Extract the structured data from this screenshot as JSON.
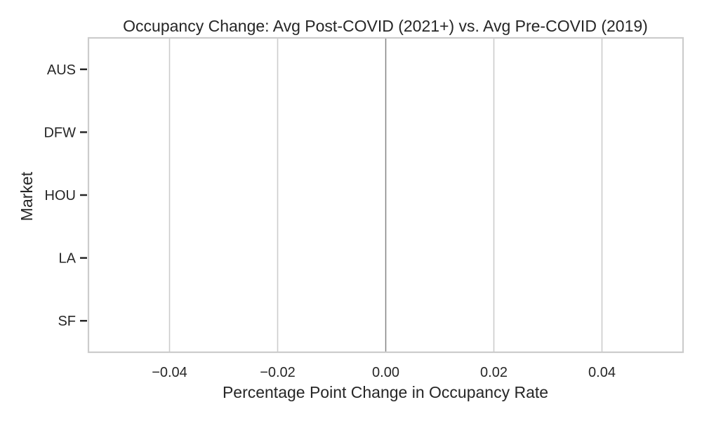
{
  "chart_data": {
    "type": "bar",
    "orientation": "horizontal",
    "title": "Occupancy Change: Avg Post-COVID (2021+) vs. Avg Pre-COVID (2019)",
    "xlabel": "Percentage Point Change in Occupancy Rate",
    "ylabel": "Market",
    "categories": [
      "AUS",
      "DFW",
      "HOU",
      "LA",
      "SF"
    ],
    "values": [
      0,
      0,
      0,
      0,
      0
    ],
    "xlim": [
      -0.055,
      0.055
    ],
    "xticks": [
      -0.04,
      -0.02,
      0.0,
      0.02,
      0.04
    ],
    "xtick_labels": [
      "−0.04",
      "−0.02",
      "0.00",
      "0.02",
      "0.04"
    ],
    "grid": "vertical",
    "zero_line": true,
    "legend": "none"
  },
  "colors": {
    "grid": "#cccccc",
    "zero_line": "#808080",
    "frame": "#cccccc",
    "text": "#262626"
  }
}
